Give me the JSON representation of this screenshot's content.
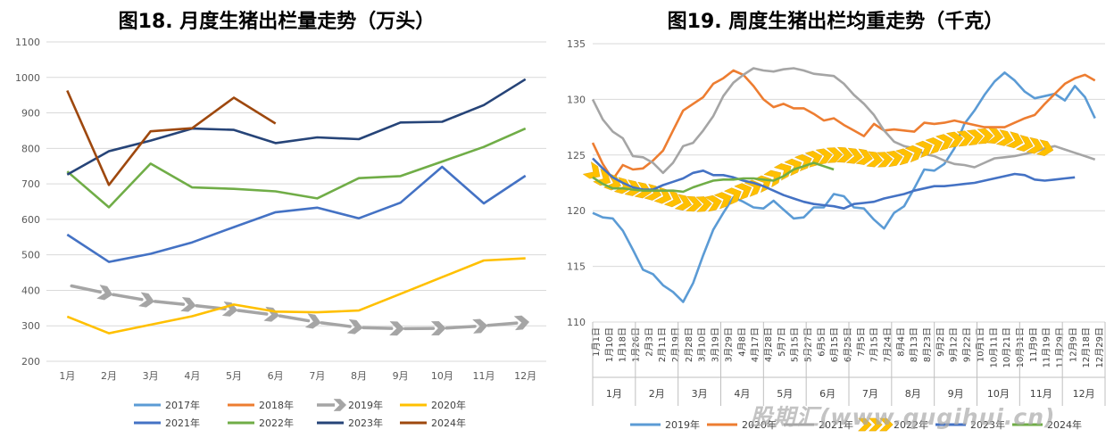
{
  "watermark": "股期汇(www.qugihui.cn)",
  "chart_data": [
    {
      "type": "line",
      "title": "图18. 月度生猪出栏量走势（万头）",
      "categories": [
        "1月",
        "2月",
        "3月",
        "4月",
        "5月",
        "6月",
        "7月",
        "8月",
        "9月",
        "10月",
        "11月",
        "12月"
      ],
      "ylim": [
        200,
        1100
      ],
      "yticks": [
        200,
        300,
        400,
        500,
        600,
        700,
        800,
        900,
        1000,
        1100
      ],
      "grid": true,
      "legend_position": "bottom",
      "series": [
        {
          "name": "2017年",
          "color": "#5B9BD5",
          "style": "solid",
          "values": [
            null,
            null,
            null,
            null,
            null,
            null,
            null,
            null,
            null,
            null,
            null,
            null
          ]
        },
        {
          "name": "2018年",
          "color": "#ED7D31",
          "style": "solid",
          "values": [
            null,
            null,
            null,
            null,
            null,
            null,
            null,
            null,
            null,
            null,
            null,
            null
          ]
        },
        {
          "name": "2019年",
          "color": "#A5A5A5",
          "style": "arrow",
          "values": [
            415,
            390,
            370,
            358,
            345,
            330,
            310,
            295,
            292,
            293,
            300,
            310
          ]
        },
        {
          "name": "2020年",
          "color": "#FFC000",
          "style": "solid",
          "values": [
            326,
            279,
            303,
            327,
            360,
            340,
            338,
            343,
            390,
            437,
            484,
            490
          ]
        },
        {
          "name": "2021年",
          "color": "#4472C4",
          "style": "solid",
          "values": [
            557,
            480,
            503,
            535,
            578,
            620,
            633,
            603,
            647,
            748,
            645,
            723
          ]
        },
        {
          "name": "2022年",
          "color": "#70AD47",
          "style": "solid",
          "values": [
            735,
            634,
            757,
            690,
            686,
            679,
            659,
            716,
            722,
            763,
            804,
            856
          ]
        },
        {
          "name": "2023年",
          "color": "#264478",
          "style": "solid",
          "values": [
            726,
            792,
            822,
            856,
            852,
            815,
            831,
            826,
            873,
            875,
            922,
            995
          ]
        },
        {
          "name": "2024年",
          "color": "#9E480E",
          "style": "solid",
          "values": [
            963,
            697,
            848,
            857,
            943,
            870,
            null,
            null,
            null,
            null,
            null,
            null
          ]
        }
      ]
    },
    {
      "type": "line",
      "title": "图19. 周度生猪出栏均重走势（千克）",
      "ylim": [
        110,
        135
      ],
      "yticks": [
        110,
        115,
        120,
        125,
        130,
        135
      ],
      "grid": true,
      "legend_position": "bottom",
      "x_labels": [
        "1月1日",
        "1月10日",
        "1月18日",
        "1月26日",
        "2月3日",
        "2月11日",
        "2月19日",
        "2月28日",
        "3月10日",
        "3月19日",
        "3月29日",
        "4月8日",
        "4月17日",
        "4月28日",
        "5月7日",
        "5月15日",
        "5月27日",
        "6月5日",
        "6月15日",
        "6月25日",
        "7月5日",
        "7月15日",
        "7月24日",
        "8月4日",
        "8月13日",
        "8月23日",
        "9月2日",
        "9月12日",
        "9月22日",
        "10月1日",
        "10月11日",
        "10月21日",
        "10月31日",
        "11月9日",
        "11月19日",
        "11月29日",
        "12月9日",
        "12月18日",
        "12月29日"
      ],
      "month_labels": [
        "1月",
        "2月",
        "3月",
        "4月",
        "5月",
        "6月",
        "7月",
        "8月",
        "9月",
        "10月",
        "11月",
        "12月"
      ],
      "series": [
        {
          "name": "2019年",
          "color": "#5B9BD5",
          "style": "solid",
          "values": [
            119.8,
            119.4,
            119.3,
            118.2,
            116.5,
            114.7,
            114.3,
            113.3,
            112.7,
            111.8,
            113.5,
            116,
            118.3,
            119.8,
            121.2,
            120.8,
            120.3,
            120.2,
            120.9,
            120.1,
            119.3,
            119.4,
            120.3,
            120.3,
            121.5,
            121.3,
            120.3,
            120.2,
            119.2,
            118.4,
            119.8,
            120.4,
            122,
            123.7,
            123.6,
            124.2,
            125.6,
            127.8,
            129,
            130.4,
            131.6,
            132.4,
            131.7,
            130.7,
            130.1,
            130.3,
            130.5,
            129.9,
            131.2,
            130.2,
            128.3
          ]
        },
        {
          "name": "2020年",
          "color": "#ED7D31",
          "style": "solid",
          "values": [
            126.1,
            124.2,
            122.8,
            124.1,
            123.7,
            123.8,
            124.5,
            125.4,
            127.2,
            129,
            129.6,
            130.2,
            131.4,
            131.9,
            132.6,
            132.2,
            131.2,
            130,
            129.3,
            129.6,
            129.2,
            129.2,
            128.7,
            128.1,
            128.3,
            127.7,
            127.2,
            126.7,
            127.8,
            127.2,
            127.3,
            127.2,
            127.1,
            127.9,
            127.8,
            127.9,
            128.1,
            127.9,
            127.7,
            127.5,
            127.5,
            127.5,
            127.9,
            128.3,
            128.6,
            129.6,
            130.5,
            131.4,
            131.9,
            132.2,
            131.7
          ]
        },
        {
          "name": "2021年",
          "color": "#A5A5A5",
          "style": "solid",
          "values": [
            130,
            128.2,
            127.1,
            126.5,
            124.9,
            124.8,
            124.3,
            123.4,
            124.3,
            125.8,
            126.1,
            127.2,
            128.5,
            130.3,
            131.5,
            132.2,
            132.8,
            132.6,
            132.5,
            132.7,
            132.8,
            132.6,
            132.3,
            132.2,
            132.1,
            131.4,
            130.4,
            129.6,
            128.6,
            127.2,
            126.2,
            125.8,
            125.6,
            125.1,
            124.9,
            124.5,
            124.2,
            124.1,
            123.9,
            124.3,
            124.7,
            124.8,
            124.9,
            125.1,
            125.3,
            125.6,
            125.8,
            125.5,
            125.2,
            124.9,
            124.6
          ]
        },
        {
          "name": "2022年",
          "color": "#FFC000",
          "style": "arrow",
          "values": [
            123.5,
            122.9,
            122.5,
            122.2,
            122,
            121.8,
            121.6,
            121.3,
            121,
            120.7,
            120.6,
            120.6,
            120.7,
            121,
            121.4,
            121.8,
            122.1,
            122.5,
            123,
            123.6,
            124,
            124.4,
            124.7,
            124.9,
            125,
            125,
            124.9,
            124.8,
            124.6,
            124.6,
            124.7,
            124.9,
            125.2,
            125.6,
            125.9,
            126.2,
            126.4,
            126.5,
            126.6,
            126.7,
            126.7,
            126.5,
            126.3,
            126,
            125.8,
            125.6
          ]
        },
        {
          "name": "2023年",
          "color": "#4472C4",
          "style": "solid",
          "values": [
            124.7,
            123.8,
            123,
            122.5,
            122.1,
            121.9,
            121.9,
            122.3,
            122.6,
            122.9,
            123.4,
            123.6,
            123.2,
            123.2,
            123,
            122.7,
            122.5,
            122.2,
            121.8,
            121.4,
            121.1,
            120.8,
            120.6,
            120.5,
            120.4,
            120.2,
            120.6,
            120.7,
            120.8,
            121.1,
            121.3,
            121.5,
            121.8,
            122,
            122.2,
            122.2,
            122.3,
            122.4,
            122.5,
            122.7,
            122.9,
            123.1,
            123.3,
            123.2,
            122.8,
            122.7,
            122.8,
            122.9,
            123
          ]
        },
        {
          "name": "2024年",
          "color": "#70AD47",
          "style": "solid",
          "values": [
            123,
            122.4,
            122,
            122,
            121.9,
            121.8,
            121.8,
            121.8,
            121.8,
            121.7,
            122.1,
            122.4,
            122.7,
            122.8,
            122.8,
            122.9,
            122.9,
            122.8,
            122.7,
            123.1,
            123.7,
            124,
            124.3,
            124,
            123.7
          ]
        }
      ]
    }
  ]
}
